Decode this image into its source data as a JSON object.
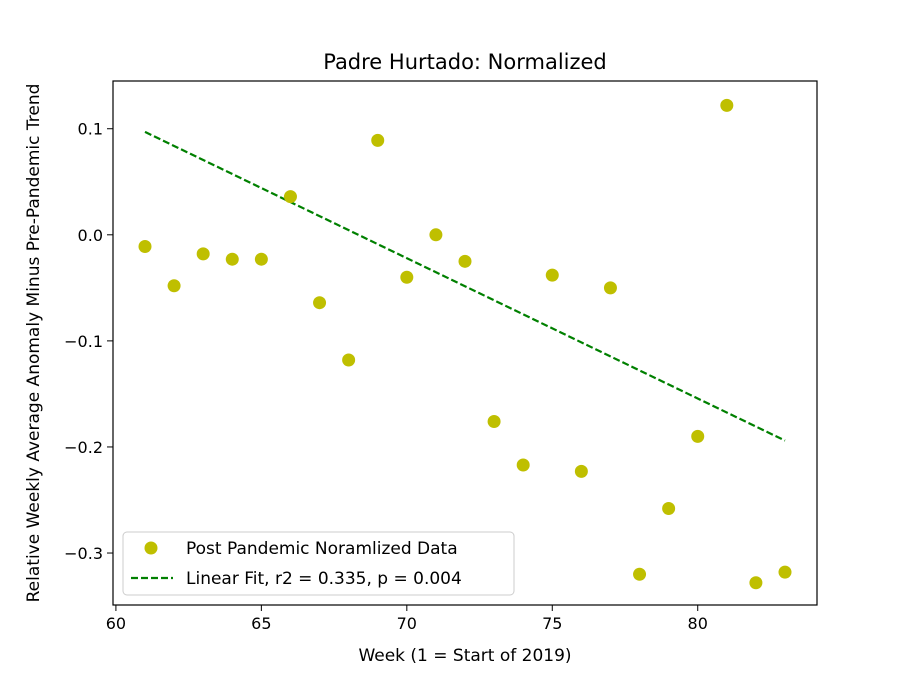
{
  "chart_data": {
    "type": "scatter",
    "title": "Padre Hurtado: Normalized",
    "xlabel": "Week (1 = Start of 2019)",
    "ylabel": "Relative Weekly Average Anomaly Minus Pre-Pandemic Trend",
    "xlim": [
      59.9,
      84.1
    ],
    "ylim": [
      -0.349,
      0.145
    ],
    "xticks": [
      60,
      65,
      70,
      75,
      80
    ],
    "xtick_labels": [
      "60",
      "65",
      "70",
      "75",
      "80"
    ],
    "yticks": [
      -0.3,
      -0.2,
      -0.1,
      0.0,
      0.1
    ],
    "ytick_labels": [
      "−0.3",
      "−0.2",
      "−0.1",
      "0.0",
      "0.1"
    ],
    "grid": false,
    "legend_position": "lower-left",
    "series": [
      {
        "name": "Post Pandemic Noramlized Data",
        "kind": "scatter",
        "color": "#bfbf00",
        "x": [
          61,
          62,
          63,
          64,
          65,
          66,
          67,
          68,
          69,
          70,
          71,
          72,
          73,
          74,
          75,
          76,
          77,
          78,
          79,
          80,
          81,
          82,
          83
        ],
        "y": [
          -0.011,
          -0.048,
          -0.018,
          -0.023,
          -0.023,
          0.036,
          -0.064,
          -0.118,
          0.089,
          -0.04,
          0.0,
          -0.025,
          -0.176,
          -0.217,
          -0.038,
          -0.223,
          -0.05,
          -0.32,
          -0.258,
          -0.19,
          0.122,
          -0.328,
          -0.318
        ]
      },
      {
        "name": "Linear Fit, r2 = 0.335, p = 0.004",
        "kind": "line",
        "style": "dashed",
        "color": "#008000",
        "x": [
          61,
          83
        ],
        "y": [
          0.097,
          -0.194
        ]
      }
    ]
  }
}
